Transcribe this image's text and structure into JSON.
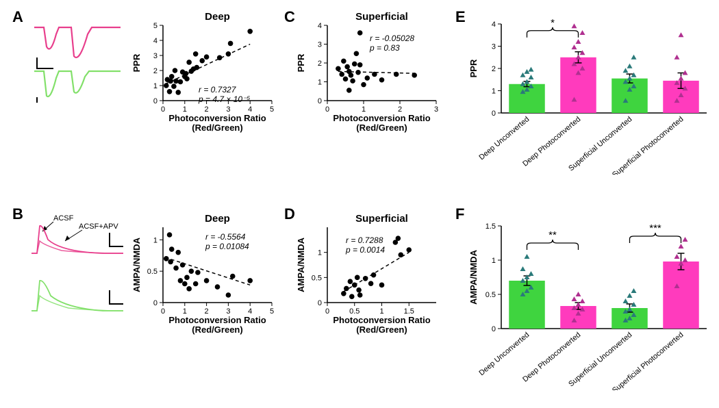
{
  "colors": {
    "pink": "#e83e8c",
    "magenta": "#e83e8c",
    "green": "#82e06a",
    "light_green": "#a3e287",
    "teal_marker": "#2a7a7a",
    "magenta_marker": "#b03090",
    "black": "#000000",
    "bar_green": "#3fd43f",
    "bar_pink": "#ff3bbd"
  },
  "panels": {
    "A": {
      "label": "A",
      "title": "Deep",
      "xlabel": "Photoconversion Ratio",
      "xlabel2": "(Red/Green)",
      "ylabel": "PPR",
      "r": "r = 0.7327",
      "p_html": "p = 4.7 × 10⁻⁵",
      "xlim": [
        0,
        5
      ],
      "ylim": [
        0,
        5
      ],
      "xticks": [
        0,
        1,
        2,
        3,
        4,
        5
      ],
      "yticks": [
        0,
        1,
        2,
        3,
        4,
        5
      ],
      "points": [
        [
          0.15,
          1.0
        ],
        [
          0.2,
          1.4
        ],
        [
          0.3,
          0.6
        ],
        [
          0.35,
          1.3
        ],
        [
          0.4,
          1.6
        ],
        [
          0.5,
          0.95
        ],
        [
          0.55,
          2.0
        ],
        [
          0.6,
          1.3
        ],
        [
          0.7,
          0.55
        ],
        [
          0.8,
          1.25
        ],
        [
          0.9,
          1.9
        ],
        [
          1.0,
          1.6
        ],
        [
          1.05,
          1.8
        ],
        [
          1.1,
          1.45
        ],
        [
          1.2,
          2.55
        ],
        [
          1.3,
          1.95
        ],
        [
          1.4,
          2.1
        ],
        [
          1.5,
          3.1
        ],
        [
          1.55,
          2.2
        ],
        [
          1.8,
          2.65
        ],
        [
          2.0,
          2.9
        ],
        [
          2.6,
          2.85
        ],
        [
          3.0,
          3.1
        ],
        [
          3.1,
          3.8
        ],
        [
          4.0,
          4.6
        ]
      ],
      "fit": [
        [
          0.1,
          1.1
        ],
        [
          4.0,
          3.75
        ]
      ]
    },
    "B": {
      "label": "B",
      "title": "Deep",
      "xlabel": "Photoconversion Ratio",
      "xlabel2": "(Red/Green)",
      "ylabel": "AMPA/NMDA",
      "r": "r = -0.5564",
      "p": "p = 0.01084",
      "xlim": [
        0,
        5
      ],
      "ylim": [
        0,
        1.2
      ],
      "xticks": [
        0,
        1,
        2,
        3,
        4,
        5
      ],
      "yticks": [
        0,
        0.5,
        1.0
      ],
      "points": [
        [
          0.15,
          0.7
        ],
        [
          0.3,
          1.08
        ],
        [
          0.35,
          0.65
        ],
        [
          0.4,
          0.85
        ],
        [
          0.6,
          0.55
        ],
        [
          0.7,
          0.8
        ],
        [
          0.8,
          0.35
        ],
        [
          0.9,
          0.6
        ],
        [
          1.0,
          0.3
        ],
        [
          1.1,
          0.4
        ],
        [
          1.2,
          0.22
        ],
        [
          1.3,
          0.5
        ],
        [
          1.5,
          0.3
        ],
        [
          1.6,
          0.48
        ],
        [
          2.0,
          0.35
        ],
        [
          2.5,
          0.25
        ],
        [
          3.2,
          0.42
        ],
        [
          3.0,
          0.12
        ],
        [
          4.0,
          0.35
        ]
      ],
      "fit": [
        [
          0.1,
          0.72
        ],
        [
          4.0,
          0.28
        ]
      ]
    },
    "C": {
      "label": "C",
      "title": "Superficial",
      "xlabel": "Photoconversion Ratio",
      "xlabel2": "(Red/Green)",
      "ylabel": "PPR",
      "r": "r = -0.05028",
      "p": "p = 0.83",
      "xlim": [
        0,
        3
      ],
      "ylim": [
        0,
        4
      ],
      "xticks": [
        0,
        1,
        2,
        3
      ],
      "yticks": [
        0,
        1,
        2,
        3,
        4
      ],
      "points": [
        [
          0.3,
          1.7
        ],
        [
          0.4,
          1.4
        ],
        [
          0.45,
          2.1
        ],
        [
          0.5,
          1.15
        ],
        [
          0.55,
          1.8
        ],
        [
          0.6,
          0.55
        ],
        [
          0.6,
          1.55
        ],
        [
          0.65,
          1.35
        ],
        [
          0.7,
          1.05
        ],
        [
          0.75,
          1.95
        ],
        [
          0.8,
          2.5
        ],
        [
          0.85,
          1.5
        ],
        [
          0.9,
          3.6
        ],
        [
          0.9,
          1.9
        ],
        [
          1.0,
          0.85
        ],
        [
          1.1,
          1.2
        ],
        [
          1.3,
          1.4
        ],
        [
          1.5,
          1.1
        ],
        [
          1.9,
          1.4
        ],
        [
          2.4,
          1.35
        ]
      ],
      "fit": [
        [
          0.3,
          1.55
        ],
        [
          2.4,
          1.45
        ]
      ]
    },
    "D": {
      "label": "D",
      "title": "Superficial",
      "xlabel": "Photoconversion Ratio",
      "xlabel2": "(Red/Green)",
      "ylabel": "AMPA/NMDA",
      "r": "r = 0.7288",
      "p": "p = 0.0014",
      "xlim": [
        0,
        2
      ],
      "ylim": [
        0,
        1.5
      ],
      "xticks": [
        0,
        0.5,
        1.0,
        1.5
      ],
      "yticks": [
        0,
        0.5,
        1.0
      ],
      "points": [
        [
          0.3,
          0.18
        ],
        [
          0.35,
          0.28
        ],
        [
          0.42,
          0.42
        ],
        [
          0.45,
          0.12
        ],
        [
          0.5,
          0.35
        ],
        [
          0.55,
          0.5
        ],
        [
          0.58,
          0.25
        ],
        [
          0.6,
          0.15
        ],
        [
          0.7,
          0.48
        ],
        [
          0.8,
          0.38
        ],
        [
          0.85,
          0.55
        ],
        [
          1.0,
          0.35
        ],
        [
          1.25,
          1.2
        ],
        [
          1.3,
          1.28
        ],
        [
          1.35,
          0.95
        ],
        [
          1.5,
          1.05
        ]
      ],
      "fit": [
        [
          0.3,
          0.22
        ],
        [
          1.5,
          1.0
        ]
      ]
    },
    "E": {
      "label": "E",
      "ylabel": "PPR",
      "ylim": [
        0,
        4
      ],
      "yticks": [
        0,
        1,
        2,
        3,
        4
      ],
      "categories": [
        "Deep Unconverted",
        "Deep Photoconverted",
        "Superficial Unconverted",
        "Superficial Photoconverted"
      ],
      "bar_colors": [
        "#3fd43f",
        "#ff3bbd",
        "#3fd43f",
        "#ff3bbd"
      ],
      "means": [
        1.3,
        2.5,
        1.55,
        1.45
      ],
      "sem": [
        0.12,
        0.25,
        0.2,
        0.35
      ],
      "sig": [
        {
          "from": 0,
          "to": 1,
          "label": "*",
          "y": 3.7
        }
      ],
      "points": [
        {
          "x": 0,
          "color": "#2a7a7a",
          "vals": [
            0.95,
            1.05,
            1.2,
            1.3,
            1.4,
            1.6,
            1.7,
            1.85,
            1.95
          ]
        },
        {
          "x": 1,
          "color": "#b03090",
          "vals": [
            0.6,
            1.8,
            2.0,
            2.2,
            2.5,
            2.7,
            2.95,
            3.2,
            3.6,
            3.9
          ]
        },
        {
          "x": 2,
          "color": "#2a7a7a",
          "vals": [
            0.55,
            1.05,
            1.2,
            1.4,
            1.55,
            1.7,
            1.9,
            2.1,
            2.5
          ]
        },
        {
          "x": 3,
          "color": "#b03090",
          "vals": [
            0.55,
            0.8,
            1.1,
            1.35,
            1.55,
            1.8,
            2.5,
            3.5
          ]
        }
      ]
    },
    "F": {
      "label": "F",
      "ylabel": "AMPA/NMDA",
      "ylim": [
        0,
        1.5
      ],
      "yticks": [
        0,
        0.5,
        1.0,
        1.5
      ],
      "categories": [
        "Deep Unconverted",
        "Deep Photoconverted",
        "Superficial Unconverted",
        "Superficial Photoconverted"
      ],
      "bar_colors": [
        "#3fd43f",
        "#ff3bbd",
        "#3fd43f",
        "#ff3bbd"
      ],
      "means": [
        0.7,
        0.33,
        0.3,
        0.98
      ],
      "sem": [
        0.07,
        0.05,
        0.06,
        0.12
      ],
      "sig": [
        {
          "from": 0,
          "to": 1,
          "label": "**",
          "y": 1.25
        },
        {
          "from": 2,
          "to": 3,
          "label": "***",
          "y": 1.35
        }
      ],
      "points": [
        {
          "x": 0,
          "color": "#2a7a7a",
          "vals": [
            0.5,
            0.55,
            0.6,
            0.7,
            0.75,
            0.8,
            0.87,
            1.05
          ]
        },
        {
          "x": 1,
          "color": "#b03090",
          "vals": [
            0.12,
            0.22,
            0.28,
            0.3,
            0.35,
            0.4,
            0.43,
            0.5
          ]
        },
        {
          "x": 2,
          "color": "#2a7a7a",
          "vals": [
            0.12,
            0.15,
            0.2,
            0.25,
            0.28,
            0.35,
            0.4,
            0.48,
            0.55
          ]
        },
        {
          "x": 3,
          "color": "#b03090",
          "vals": [
            0.62,
            0.95,
            1.0,
            1.05,
            1.2,
            1.3
          ]
        }
      ]
    }
  },
  "trace_labels": {
    "acsf": "ACSF",
    "acsf_apv": "ACSF+APV"
  }
}
